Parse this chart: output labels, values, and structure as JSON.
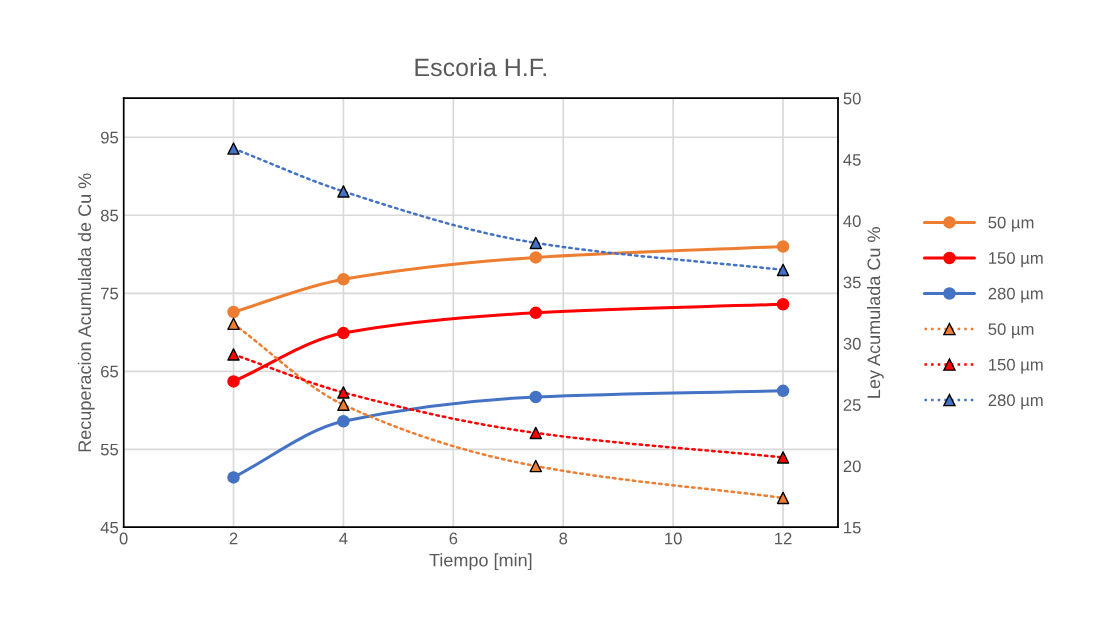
{
  "chart_data": {
    "type": "line",
    "title": "Escoria H.F.",
    "xlabel": "Tiempo [min]",
    "ylabel": "Recuperacion Acumulada de Cu %",
    "y2label": "Ley Acumulada Cu %",
    "x": [
      2,
      4,
      7.5,
      12
    ],
    "series": [
      {
        "name": "50 µm",
        "color": "#ed7d31",
        "marker": "circle",
        "line_style": "solid",
        "values": [
          72.6,
          76.8,
          79.6,
          81.0
        ]
      },
      {
        "name": "150 µm",
        "color": "#ff0000",
        "marker": "circle",
        "line_style": "solid",
        "values": [
          63.7,
          69.9,
          72.5,
          73.6
        ]
      },
      {
        "name": "280 µm",
        "color": "#4472c4",
        "marker": "circle",
        "line_style": "solid",
        "values": [
          51.4,
          58.6,
          61.7,
          62.5
        ]
      },
      {
        "name": "50 µm",
        "color": "#ed7d31",
        "marker": "triangle",
        "line_style": "dotted",
        "axis": "y2",
        "values": [
          31.6,
          25.0,
          20.0,
          17.4
        ]
      },
      {
        "name": "150 µm",
        "color": "#ff0000",
        "marker": "triangle",
        "line_style": "dotted",
        "axis": "y2",
        "values": [
          29.1,
          26.0,
          22.7,
          20.7
        ]
      },
      {
        "name": "280 µm",
        "color": "#4472c4",
        "marker": "triangle",
        "line_style": "dotted",
        "axis": "y2",
        "values": [
          45.9,
          42.4,
          38.2,
          36.0
        ]
      }
    ],
    "xlim": [
      0,
      13
    ],
    "xticks": [
      0,
      2,
      4,
      6,
      8,
      10,
      12
    ],
    "ylim": [
      45,
      100
    ],
    "yticks": [
      45,
      55,
      65,
      75,
      85,
      95
    ],
    "y2lim": [
      15,
      50
    ],
    "y2ticks": [
      15,
      20,
      25,
      30,
      35,
      40,
      45,
      50
    ],
    "grid": true,
    "legend": "right"
  }
}
